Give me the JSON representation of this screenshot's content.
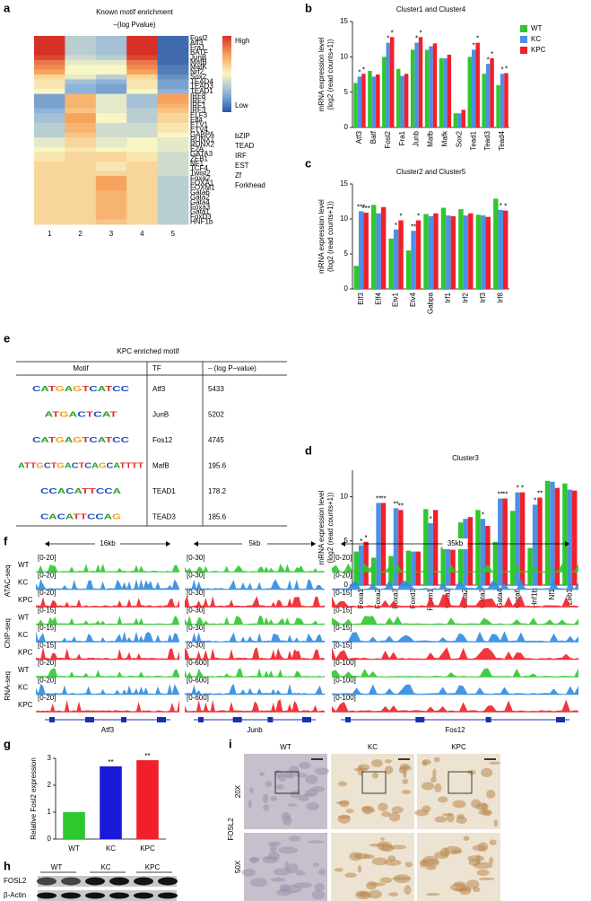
{
  "panel_labels": [
    "a",
    "b",
    "c",
    "d",
    "e",
    "f",
    "g",
    "h",
    "i"
  ],
  "chart_data": [
    {
      "type": "heatmap",
      "title": [
        "Known motif enrichment",
        "–(log Pvalue)"
      ],
      "colorbar_labels": [
        "High",
        "Low"
      ],
      "colorscale": [
        "#2b59a3",
        "#8fb4d9",
        "#f9f6c5",
        "#f7a35c",
        "#d73027"
      ],
      "columns": [
        1,
        2,
        3,
        4,
        5
      ],
      "rows": [
        "Fosl2",
        "Atf3",
        "Fra1",
        "BATF",
        "JunB",
        "MafB",
        "MafK",
        "Nrf2",
        "Sox2",
        "TEAD4",
        "TEAD3",
        "TEAD1",
        "IRF8",
        "IRF2",
        "IRF1",
        "IRF3",
        "ELF3",
        "Elf4",
        "ETV1",
        "ETV4",
        "GABPA",
        "RUNX1",
        "RUNX2",
        "E2A",
        "GATA3",
        "ZEB1",
        "NF1",
        "TCF4",
        "Twist2",
        "Foxa2",
        "FOXA1",
        "FOXM1",
        "Gata6",
        "Gata2",
        "Gata4",
        "Foxa3",
        "Gata1",
        "FoxD3",
        "HNF1b"
      ],
      "row_colors": [
        "#e0352b",
        "#e0352b",
        "#e0352b",
        "#e0352b",
        "#e0352b",
        "#e0352b",
        "#e0352b",
        "#e0352b",
        "#000000",
        "#c9a227",
        "#c9a227",
        "#c9a227",
        "#3a9a3a",
        "#3a9a3a",
        "#3a9a3a",
        "#3a9a3a",
        "#2a4aa0",
        "#2a4aa0",
        "#2a4aa0",
        "#2a4aa0",
        "#2a4aa0",
        "#000000",
        "#000000",
        "#000000",
        "#8b2da0",
        "#8b2da0",
        "#000000",
        "#000000",
        "#000000",
        "#e06a4a",
        "#e06a4a",
        "#e06a4a",
        "#8b2da0",
        "#8b2da0",
        "#8b2da0",
        "#8b2da0",
        "#8b2da0",
        "#8b2da0",
        "#000000"
      ],
      "families": [
        {
          "name": "bZIP",
          "color": "#e0352b"
        },
        {
          "name": "TEAD",
          "color": "#c9a227"
        },
        {
          "name": "IRF",
          "color": "#3a9a3a"
        },
        {
          "name": "EST",
          "color": "#2a4aa0"
        },
        {
          "name": "Zf",
          "color": "#8b2da0"
        },
        {
          "name": "Forkhead",
          "color": "#e06a4a"
        }
      ],
      "values": [
        [
          1,
          0.35,
          0.3,
          1,
          0.05
        ],
        [
          1,
          0.35,
          0.3,
          1,
          0.05
        ],
        [
          1,
          0.35,
          0.3,
          1,
          0.05
        ],
        [
          1,
          0.35,
          0.3,
          1,
          0.05
        ],
        [
          0.95,
          0.4,
          0.35,
          0.95,
          0.05
        ],
        [
          0.85,
          0.45,
          0.45,
          0.85,
          0.05
        ],
        [
          0.8,
          0.5,
          0.5,
          0.8,
          0.1
        ],
        [
          0.75,
          0.5,
          0.5,
          0.75,
          0.1
        ],
        [
          0.6,
          0.45,
          0.35,
          0.6,
          0.15
        ],
        [
          0.55,
          0.3,
          0.25,
          0.55,
          0.2
        ],
        [
          0.55,
          0.25,
          0.2,
          0.55,
          0.2
        ],
        [
          0.5,
          0.25,
          0.2,
          0.5,
          0.25
        ],
        [
          0.2,
          0.7,
          0.45,
          0.3,
          0.75
        ],
        [
          0.2,
          0.7,
          0.45,
          0.3,
          0.75
        ],
        [
          0.2,
          0.7,
          0.45,
          0.3,
          0.7
        ],
        [
          0.25,
          0.65,
          0.45,
          0.35,
          0.65
        ],
        [
          0.3,
          0.75,
          0.5,
          0.35,
          0.6
        ],
        [
          0.3,
          0.75,
          0.5,
          0.35,
          0.6
        ],
        [
          0.35,
          0.7,
          0.4,
          0.4,
          0.55
        ],
        [
          0.35,
          0.7,
          0.4,
          0.4,
          0.55
        ],
        [
          0.35,
          0.65,
          0.4,
          0.4,
          0.5
        ],
        [
          0.45,
          0.6,
          0.45,
          0.5,
          0.45
        ],
        [
          0.45,
          0.6,
          0.45,
          0.5,
          0.45
        ],
        [
          0.5,
          0.55,
          0.5,
          0.5,
          0.45
        ],
        [
          0.55,
          0.6,
          0.6,
          0.55,
          0.4
        ],
        [
          0.55,
          0.6,
          0.6,
          0.55,
          0.4
        ],
        [
          0.6,
          0.6,
          0.55,
          0.6,
          0.4
        ],
        [
          0.6,
          0.6,
          0.55,
          0.6,
          0.4
        ],
        [
          0.6,
          0.6,
          0.6,
          0.6,
          0.4
        ],
        [
          0.6,
          0.6,
          0.75,
          0.6,
          0.35
        ],
        [
          0.6,
          0.6,
          0.75,
          0.6,
          0.35
        ],
        [
          0.6,
          0.6,
          0.75,
          0.6,
          0.35
        ],
        [
          0.6,
          0.6,
          0.7,
          0.6,
          0.35
        ],
        [
          0.6,
          0.6,
          0.7,
          0.6,
          0.35
        ],
        [
          0.6,
          0.6,
          0.7,
          0.6,
          0.35
        ],
        [
          0.6,
          0.6,
          0.7,
          0.6,
          0.35
        ],
        [
          0.6,
          0.6,
          0.7,
          0.6,
          0.35
        ],
        [
          0.6,
          0.6,
          0.7,
          0.6,
          0.35
        ],
        [
          0.6,
          0.6,
          0.65,
          0.6,
          0.35
        ]
      ]
    },
    {
      "type": "bar",
      "title": "Cluster1 and Cluster4",
      "ylabel": [
        "mRNA expression level",
        "(log2 (read counts+1))"
      ],
      "categories": [
        "Atf3",
        "Batf",
        "Fosl2",
        "Fra1",
        "Junb",
        "Mafb",
        "Mafk",
        "Sox2",
        "Tead1",
        "Tead3",
        "Tead4"
      ],
      "series": [
        {
          "name": "WT",
          "color": "#2ec82e",
          "values": [
            6.3,
            8.0,
            10.0,
            8.3,
            11.0,
            11.0,
            9.8,
            2.0,
            10.0,
            7.6,
            6.0
          ]
        },
        {
          "name": "KC",
          "color": "#4f8fe6",
          "values": [
            7.2,
            7.2,
            12.0,
            7.3,
            12.0,
            11.5,
            9.8,
            2.0,
            11.0,
            9.0,
            7.6
          ],
          "significance": [
            "*",
            null,
            "*",
            null,
            "*",
            null,
            null,
            null,
            "*",
            "*",
            "*"
          ]
        },
        {
          "name": "KPC",
          "color": "#f0202a",
          "values": [
            7.6,
            7.5,
            12.8,
            7.6,
            12.8,
            11.9,
            10.3,
            2.5,
            12.0,
            9.8,
            7.7
          ],
          "significance": [
            "*",
            null,
            "*",
            null,
            "*",
            null,
            null,
            null,
            "*",
            "*",
            "*"
          ]
        }
      ],
      "ylim": [
        0,
        15
      ],
      "yticks": [
        0,
        5,
        10,
        15
      ],
      "x_label_rotation": 90,
      "legend": true
    },
    {
      "type": "bar",
      "title": "Cluster2 and Cluster5",
      "ylabel": [
        "mRNA expression level",
        "(log2 (read counts+1))"
      ],
      "categories": [
        "Elf3",
        "Elf4",
        "Etv1",
        "Etv4",
        "Gabpa",
        "Irf1",
        "Irf2",
        "Irf3",
        "Irf8"
      ],
      "series": [
        {
          "name": "WT",
          "color": "#2ec82e",
          "values": [
            3.3,
            12.0,
            7.2,
            5.5,
            10.7,
            11.6,
            11.4,
            10.6,
            12.9
          ]
        },
        {
          "name": "KC",
          "color": "#4f8fe6",
          "values": [
            11.1,
            10.8,
            8.5,
            8.3,
            10.4,
            10.5,
            10.5,
            10.5,
            11.3
          ],
          "significance": [
            "***",
            null,
            "*",
            "**",
            null,
            null,
            null,
            null,
            "*"
          ]
        },
        {
          "name": "KPC",
          "color": "#f0202a",
          "values": [
            10.9,
            11.7,
            9.8,
            9.8,
            10.8,
            10.4,
            10.8,
            10.3,
            11.2
          ],
          "significance": [
            "***",
            null,
            "*",
            "*",
            null,
            null,
            null,
            null,
            "*"
          ]
        }
      ],
      "ylim": [
        0,
        15
      ],
      "yticks": [
        0,
        5,
        10,
        15
      ],
      "x_label_rotation": 90,
      "legend": false
    },
    {
      "type": "bar",
      "title": "Cluster3",
      "ylabel": [
        "mRNA expression level",
        "(log2 (read counts+1))"
      ],
      "categories": [
        "Foxa1",
        "Foxa2",
        "Foxa3",
        "Foxd3",
        "Foxm1",
        "Gata1",
        "Gata2",
        "Gata3",
        "Gata4",
        "Gata6",
        "Hnf1b",
        "Nf1",
        "Zeb1"
      ],
      "series": [
        {
          "name": "WT",
          "color": "#2ec82e",
          "values": [
            3.8,
            3.1,
            3.3,
            3.9,
            8.6,
            4.3,
            7.1,
            8.5,
            4.9,
            8.4,
            4.2,
            11.8,
            11.5
          ]
        },
        {
          "name": "KC",
          "color": "#4f8fe6",
          "values": [
            4.5,
            9.3,
            8.7,
            3.8,
            7.0,
            4.2,
            7.5,
            7.5,
            9.8,
            10.5,
            9.1,
            11.7,
            10.8
          ],
          "significance": [
            "*",
            "**",
            "**",
            null,
            "*",
            null,
            null,
            "*",
            "**",
            "*",
            "*",
            null,
            null
          ]
        },
        {
          "name": "KPC",
          "color": "#f0202a",
          "values": [
            4.9,
            9.3,
            8.5,
            3.8,
            8.5,
            4.0,
            7.7,
            6.7,
            9.8,
            10.5,
            9.9,
            11.0,
            10.7
          ],
          "significance": [
            "*",
            "**",
            "**",
            null,
            null,
            null,
            null,
            null,
            "**",
            "*",
            "**",
            null,
            null
          ]
        }
      ],
      "ylim": [
        0,
        13
      ],
      "yticks": [
        0,
        5,
        10
      ],
      "x_label_rotation": 90,
      "legend": false
    },
    {
      "type": "bar",
      "ylabel": [
        "Relative Fosl2 expression"
      ],
      "categories": [
        "WT",
        "KC",
        "KPC"
      ],
      "values": [
        1.0,
        2.7,
        2.93
      ],
      "colors": [
        "#2ec82e",
        "#1a1ad6",
        "#f0202a"
      ],
      "significance": [
        null,
        "**",
        "**"
      ],
      "ylim": [
        0,
        3
      ],
      "yticks": [
        0,
        1,
        2,
        3
      ],
      "x_label_rotation": 0,
      "legend": false
    }
  ],
  "table": {
    "title": "KPC enriched motif",
    "columns": [
      "Motif",
      "TF",
      "– (log P–value)"
    ],
    "rows": [
      {
        "logo": "CATGAGTCATCC",
        "tf": "Atf3",
        "value": 5433,
        "color": "#000000"
      },
      {
        "logo": "ATGACTCAT",
        "tf": "JunB",
        "value": 5202,
        "color": "#000000"
      },
      {
        "logo": "CATGAGTCATCC",
        "tf": "Fos12",
        "value": 4745,
        "color": "#e0352b"
      },
      {
        "logo": "ATTGCTGACTCAGCATTTT",
        "tf": "MafB",
        "value": 195.6,
        "color": "#000000"
      },
      {
        "logo": "CCACATTCCA",
        "tf": "TEAD1",
        "value": 178.2,
        "color": "#000000"
      },
      {
        "logo": "CACATTCCAG",
        "tf": "TEAD3",
        "value": 185.6,
        "color": "#000000"
      }
    ]
  },
  "browser": {
    "scales": [
      "16kb",
      "5kb",
      "35kb"
    ],
    "assays": [
      "ATAC-seq",
      "ChIP-seq",
      "RNA-seq"
    ],
    "samples": [
      "WT",
      "KC",
      "KPC"
    ],
    "sample_colors": [
      "#2ec82e",
      "#2f8be0",
      "#f0202a"
    ],
    "ranges": [
      [
        "[0-20]",
        "[0-20]",
        "[0-20]",
        "[0-15]",
        "[0-15]",
        "[0-15]",
        "[0-20]",
        "[0-20]",
        "[0-20]"
      ],
      [
        "[0-30]",
        "[0-30]",
        "[0-30]",
        "[0-30]",
        "[0-30]",
        "[0-30]",
        "[0-600]",
        "[0-600]",
        "[0-600]"
      ],
      [
        "[0-20]",
        "[0-20]",
        "[0-15]",
        "[0-15]",
        "[0-15]",
        "[0-15]",
        "[0-100]",
        "[0-100]",
        "[0-100]"
      ]
    ],
    "genes": [
      "Atf3",
      "Junb",
      "Fos12"
    ]
  },
  "blot": {
    "samples": [
      "WT",
      "KC",
      "KPC"
    ],
    "proteins": [
      "FOSL2",
      "β-Actin"
    ]
  },
  "histology": {
    "samples": [
      "WT",
      "KC",
      "KPC"
    ],
    "magnifications": [
      "20X",
      "50X"
    ],
    "stain": "FOSL2"
  }
}
